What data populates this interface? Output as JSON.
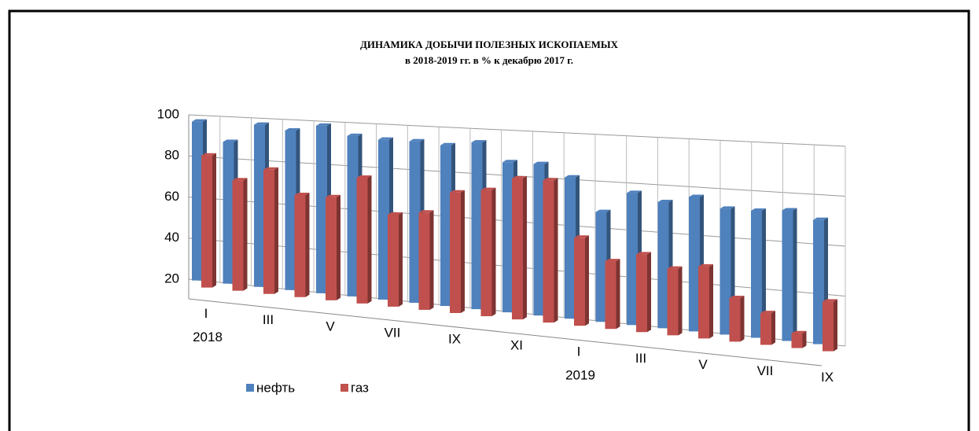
{
  "chart_data": {
    "type": "bar3d",
    "title": "ДИНАМИКА ДОБЫЧИ ПОЛЕЗНЫХ ИСКОПАЕМЫХ",
    "subtitle": "в 2018-2019 гг. в % к декабрю 2017 г.",
    "categories": [
      "I",
      null,
      "III",
      null,
      "V",
      null,
      "VII",
      null,
      "IX",
      null,
      "XI",
      null,
      "I",
      null,
      "III",
      null,
      "V",
      null,
      "VII",
      null,
      "IX"
    ],
    "year_labels": [
      "2018",
      null,
      null,
      null,
      null,
      null,
      null,
      null,
      null,
      null,
      null,
      null,
      "2019",
      null,
      null,
      null,
      null,
      null,
      null,
      null,
      null
    ],
    "series": [
      {
        "name": "нефть",
        "color": "#4f81bd",
        "values": [
          97,
          88,
          97,
          95,
          98,
          94,
          93,
          93,
          92,
          94,
          86,
          86,
          81,
          67,
          76,
          73,
          76,
          72,
          72,
          73,
          70
        ]
      },
      {
        "name": "газ",
        "color": "#c0504d",
        "values": [
          84,
          73,
          79,
          68,
          68,
          78,
          62,
          64,
          74,
          76,
          82,
          82,
          58,
          49,
          53,
          48,
          50,
          38,
          33,
          26,
          40
        ]
      }
    ],
    "ylim": [
      20,
      100
    ],
    "yticks": [
      20,
      40,
      60,
      80,
      100
    ],
    "grid": true,
    "legend": "bottom-left"
  }
}
